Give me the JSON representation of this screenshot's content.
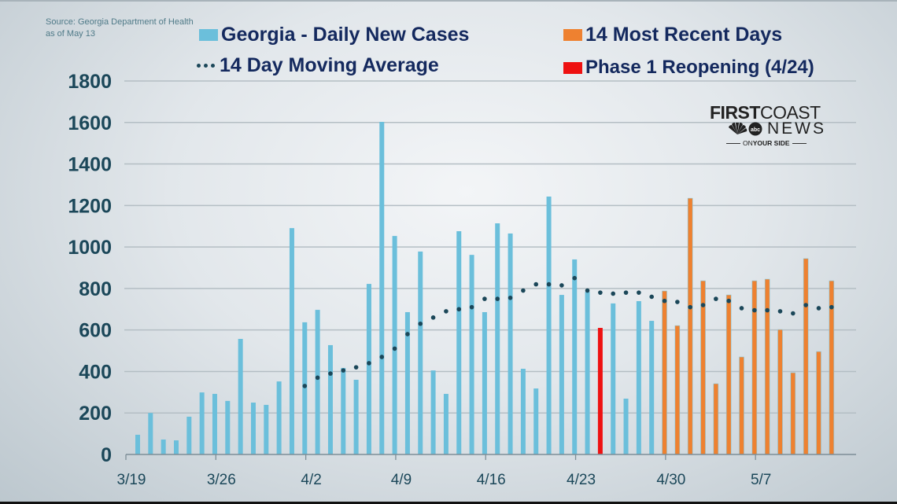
{
  "source": {
    "line1": "Source: Georgia Department of Health",
    "line2": "as of May 13"
  },
  "legend": [
    {
      "label": "Georgia - Daily New Cases",
      "marker": "swatch",
      "color": "#6bbfdb"
    },
    {
      "label": "14 Day Moving Average",
      "marker": "dots",
      "color": "#1b4759"
    },
    {
      "label": "14 Most Recent Days",
      "marker": "swatch",
      "color": "#ee8130"
    },
    {
      "label": "Phase 1 Reopening (4/24)",
      "marker": "swatch",
      "color": "#ee1111"
    }
  ],
  "logo": {
    "first": "FIRST",
    "coast": "COAST",
    "news": "NEWS",
    "abc": "abc",
    "tagline_a": "ON ",
    "tagline_b": "YOUR SIDE",
    "nbc_icon": "peacock-icon"
  },
  "chart_data": {
    "type": "bar",
    "title": "",
    "xlabel": "",
    "ylabel": "",
    "ylim": [
      0,
      1800
    ],
    "yticks": [
      0,
      200,
      400,
      600,
      800,
      1000,
      1200,
      1400,
      1600,
      1800
    ],
    "xtick_labels": [
      "3/19",
      "3/26",
      "4/2",
      "4/9",
      "4/16",
      "4/23",
      "4/30",
      "5/7"
    ],
    "xtick_day_index": [
      0,
      7,
      14,
      21,
      28,
      35,
      42,
      49
    ],
    "grid": true,
    "legend_position": "top",
    "colors": {
      "default": "#6bbfdb",
      "recent": "#ee8130",
      "reopening": "#ee1111",
      "average": "#1b4759"
    },
    "categories": [
      "3/19",
      "3/20",
      "3/21",
      "3/22",
      "3/23",
      "3/24",
      "3/25",
      "3/26",
      "3/27",
      "3/28",
      "3/29",
      "3/30",
      "3/31",
      "4/1",
      "4/2",
      "4/3",
      "4/4",
      "4/5",
      "4/6",
      "4/7",
      "4/8",
      "4/9",
      "4/10",
      "4/11",
      "4/12",
      "4/13",
      "4/14",
      "4/15",
      "4/16",
      "4/17",
      "4/18",
      "4/19",
      "4/20",
      "4/21",
      "4/22",
      "4/23",
      "4/24",
      "4/25",
      "4/26",
      "4/27",
      "4/28",
      "4/29",
      "4/30",
      "5/1",
      "5/2",
      "5/3",
      "5/4",
      "5/5",
      "5/6",
      "5/7",
      "5/8",
      "5/9",
      "5/10",
      "5/11",
      "5/12"
    ],
    "series": [
      {
        "name": "Georgia - Daily New Cases",
        "values": [
          95,
          200,
          72,
          68,
          182,
          299,
          292,
          258,
          557,
          250,
          239,
          352,
          1091,
          637,
          697,
          527,
          417,
          360,
          822,
          1603,
          1053,
          686,
          978,
          405,
          292,
          1076,
          962,
          686,
          1114,
          1065,
          413,
          318,
          1243,
          769,
          940,
          784,
          610,
          728,
          269,
          739,
          644,
          788,
          621,
          1235,
          837,
          341,
          769,
          470,
          837,
          845,
          602,
          394,
          944,
          496,
          837
        ]
      },
      {
        "name": "14 Day Moving Average",
        "type": "dotted-line",
        "values": [
          null,
          null,
          null,
          null,
          null,
          null,
          null,
          null,
          null,
          null,
          null,
          null,
          null,
          330,
          370,
          390,
          405,
          420,
          440,
          470,
          510,
          580,
          630,
          660,
          690,
          700,
          710,
          750,
          750,
          755,
          790,
          820,
          820,
          815,
          850,
          790,
          780,
          775,
          780,
          780,
          760,
          740,
          735,
          710,
          720,
          750,
          740,
          705,
          695,
          695,
          690,
          680,
          720,
          705,
          710
        ]
      }
    ],
    "reopening_index": 36,
    "recent_start_index": 41
  }
}
